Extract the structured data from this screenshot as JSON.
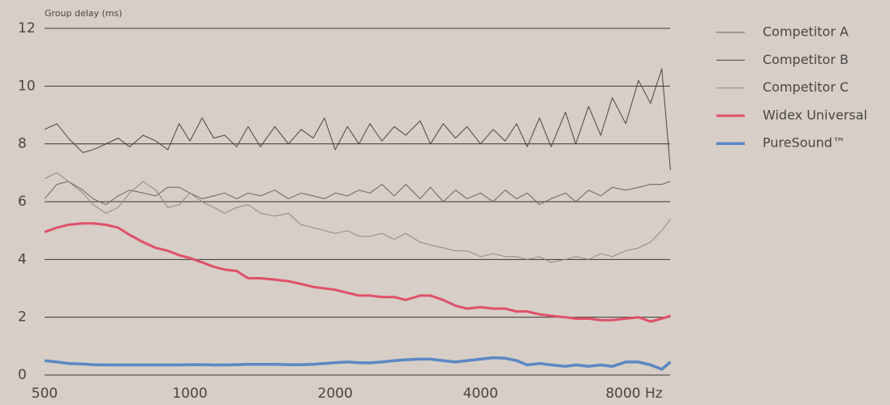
{
  "chart_data": {
    "type": "line",
    "y_label": "Group delay (ms)",
    "xscale": "log",
    "grid": true,
    "legend": "right",
    "xlim": [
      500,
      10000
    ],
    "xticks": [
      500,
      1000,
      2000,
      4000,
      {
        "value": 8000,
        "label": "8000 Hz"
      }
    ],
    "ylim": [
      0,
      12
    ],
    "yticks": [
      0,
      2,
      4,
      6,
      8,
      10,
      12
    ],
    "x": [
      500,
      530,
      560,
      600,
      630,
      670,
      710,
      750,
      800,
      850,
      900,
      950,
      1000,
      1060,
      1120,
      1180,
      1250,
      1320,
      1400,
      1500,
      1600,
      1700,
      1800,
      1900,
      2000,
      2120,
      2240,
      2360,
      2500,
      2650,
      2800,
      3000,
      3150,
      3350,
      3550,
      3750,
      4000,
      4250,
      4500,
      4750,
      5000,
      5300,
      5600,
      6000,
      6300,
      6700,
      7100,
      7500,
      8000,
      8500,
      9000,
      9500,
      9900
    ],
    "series": [
      {
        "name": "Competitor A",
        "color": "#6a6561",
        "width": 1,
        "values": [
          6.1,
          6.6,
          6.7,
          6.4,
          6.1,
          5.9,
          6.2,
          6.4,
          6.3,
          6.2,
          6.5,
          6.5,
          6.3,
          6.1,
          6.2,
          6.3,
          6.1,
          6.3,
          6.2,
          6.4,
          6.1,
          6.3,
          6.2,
          6.1,
          6.3,
          6.2,
          6.4,
          6.3,
          6.6,
          6.2,
          6.6,
          6.1,
          6.5,
          6.0,
          6.4,
          6.1,
          6.3,
          6.0,
          6.4,
          6.1,
          6.3,
          5.9,
          6.1,
          6.3,
          6.0,
          6.4,
          6.2,
          6.5,
          6.4,
          6.5,
          6.6,
          6.6,
          6.7
        ]
      },
      {
        "name": "Competitor B",
        "color": "#4a4643",
        "width": 1,
        "values": [
          8.5,
          8.7,
          8.2,
          7.7,
          7.8,
          8.0,
          8.2,
          7.9,
          8.3,
          8.1,
          7.8,
          8.7,
          8.1,
          8.9,
          8.2,
          8.3,
          7.9,
          8.6,
          7.9,
          8.6,
          8.0,
          8.5,
          8.2,
          8.9,
          7.8,
          8.6,
          8.0,
          8.7,
          8.1,
          8.6,
          8.3,
          8.8,
          8.0,
          8.7,
          8.2,
          8.6,
          8.0,
          8.5,
          8.1,
          8.7,
          7.9,
          8.9,
          7.9,
          9.1,
          8.0,
          9.3,
          8.3,
          9.6,
          8.7,
          10.2,
          9.4,
          10.6,
          7.1
        ]
      },
      {
        "name": "Competitor C",
        "color": "#8f8983",
        "width": 1,
        "values": [
          6.8,
          7.0,
          6.7,
          6.3,
          5.9,
          5.6,
          5.8,
          6.3,
          6.7,
          6.4,
          5.8,
          5.9,
          6.3,
          6.0,
          5.8,
          5.6,
          5.8,
          5.9,
          5.6,
          5.5,
          5.6,
          5.2,
          5.1,
          5.0,
          4.9,
          5.0,
          4.8,
          4.8,
          4.9,
          4.7,
          4.9,
          4.6,
          4.5,
          4.4,
          4.3,
          4.3,
          4.1,
          4.2,
          4.1,
          4.1,
          4.0,
          4.1,
          3.9,
          4.0,
          4.1,
          4.0,
          4.2,
          4.1,
          4.3,
          4.4,
          4.6,
          5.0,
          5.4
        ]
      },
      {
        "name": "Widex Universal",
        "color": "#e0506a",
        "width": 3,
        "values": [
          4.95,
          5.1,
          5.2,
          5.25,
          5.25,
          5.2,
          5.1,
          4.85,
          4.6,
          4.4,
          4.3,
          4.15,
          4.05,
          3.9,
          3.75,
          3.65,
          3.6,
          3.35,
          3.35,
          3.3,
          3.25,
          3.15,
          3.05,
          3.0,
          2.95,
          2.85,
          2.75,
          2.75,
          2.7,
          2.7,
          2.6,
          2.75,
          2.75,
          2.6,
          2.4,
          2.3,
          2.35,
          2.3,
          2.3,
          2.2,
          2.2,
          2.1,
          2.05,
          2.0,
          1.95,
          1.95,
          1.9,
          1.9,
          1.95,
          2.0,
          1.85,
          1.95,
          2.05
        ]
      },
      {
        "name": "PureSound™",
        "color": "#5b87c4",
        "width": 3.5,
        "values": [
          0.5,
          0.45,
          0.4,
          0.38,
          0.36,
          0.35,
          0.35,
          0.35,
          0.35,
          0.35,
          0.35,
          0.35,
          0.36,
          0.36,
          0.35,
          0.35,
          0.36,
          0.37,
          0.37,
          0.37,
          0.36,
          0.36,
          0.37,
          0.4,
          0.43,
          0.45,
          0.43,
          0.42,
          0.45,
          0.5,
          0.53,
          0.55,
          0.55,
          0.5,
          0.45,
          0.5,
          0.55,
          0.6,
          0.58,
          0.5,
          0.35,
          0.4,
          0.35,
          0.3,
          0.35,
          0.3,
          0.35,
          0.3,
          0.45,
          0.45,
          0.35,
          0.2,
          0.45
        ]
      }
    ]
  }
}
